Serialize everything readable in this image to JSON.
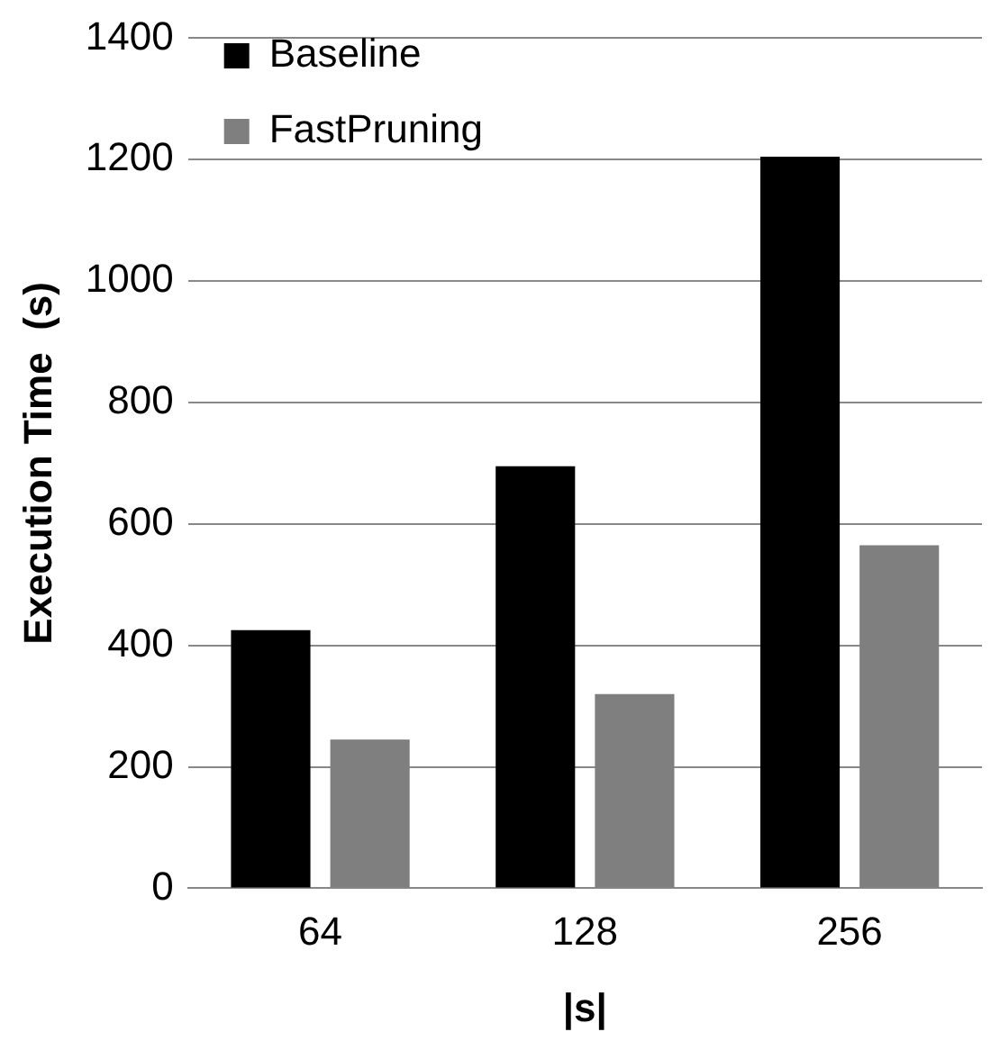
{
  "chart_data": {
    "type": "bar",
    "xlabel": "|s|",
    "ylabel": "Execution Time  (s)",
    "categories": [
      "64",
      "128",
      "256"
    ],
    "series": [
      {
        "name": "Baseline",
        "color": "#000000",
        "values": [
          425,
          695,
          1205
        ]
      },
      {
        "name": "FastPruning",
        "color": "#7f7f7f",
        "values": [
          245,
          320,
          565
        ]
      }
    ],
    "ylim": [
      0,
      1400
    ],
    "yticks": [
      0,
      200,
      400,
      600,
      800,
      1000,
      1200,
      1400
    ],
    "grid": "y",
    "legend": "top left"
  }
}
